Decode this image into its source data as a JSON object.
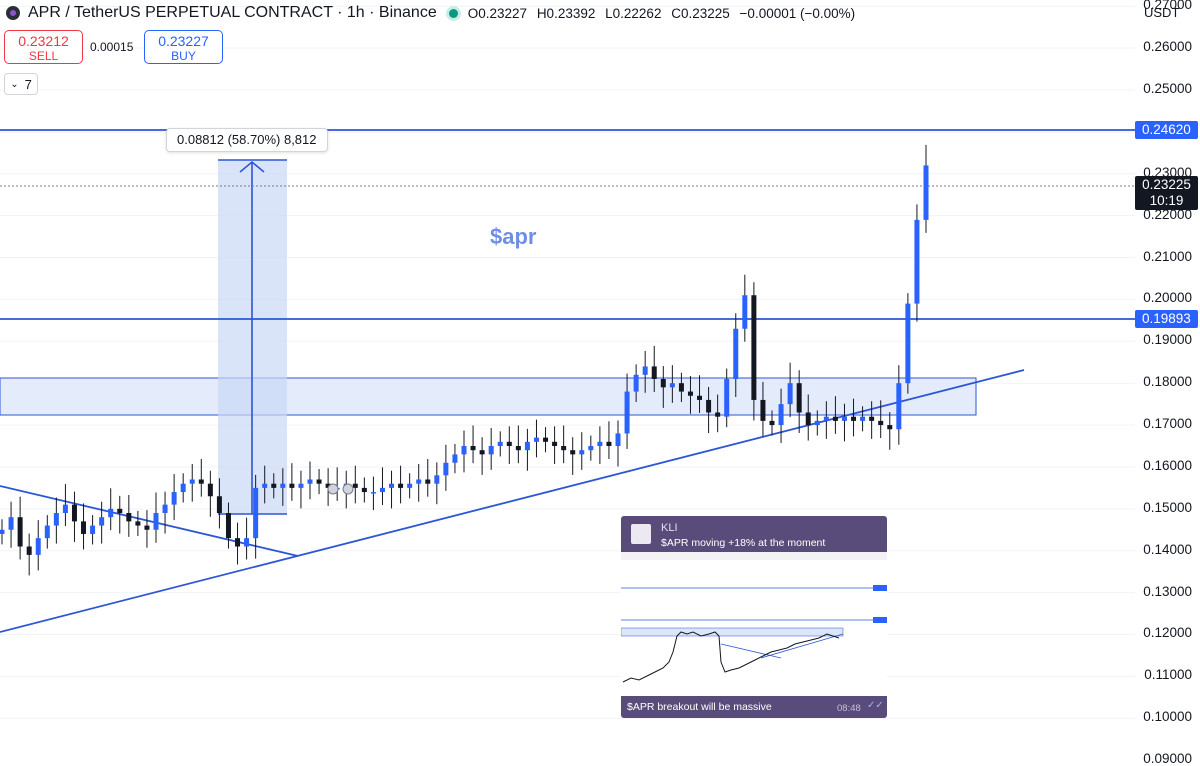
{
  "header": {
    "title": "APR / TetherUS PERPETUAL CONTRACT · 1h · Binance",
    "open": "O0.23227",
    "high": "H0.23392",
    "low": "L0.22262",
    "close": "C0.23225",
    "change": "−0.00001 (−0.00%)"
  },
  "trade": {
    "sell_price": "0.23212",
    "sell_label": "SELL",
    "spread": "0.00015",
    "buy_price": "0.23227",
    "buy_label": "BUY"
  },
  "indicators_toggle": "7",
  "currency": "USDT",
  "price_tags": {
    "upper_level": "0.24620",
    "lower_level": "0.19893",
    "current_price": "0.23225",
    "countdown": "10:19"
  },
  "measure_label": "0.08812 (58.70%) 8,812",
  "annotation": "$apr",
  "message": {
    "author": "KLI",
    "text": "$APR moving +18% at the moment",
    "caption": "$APR breakout will be massive",
    "time": "08:48",
    "check": "✓✓"
  },
  "colors": {
    "up": "#089981",
    "down": "#131722",
    "candle_up_fill": "#2962ff",
    "lines": "#2c56d6",
    "zone": "#dbe6fb",
    "accent": "#2962ff"
  },
  "chart_data": {
    "type": "candlestick",
    "title": "APR / TetherUS PERPETUAL CONTRACT · 1h · Binance",
    "y_axis_ticks": [
      "0.27000",
      "0.26000",
      "0.25000",
      "0.24000",
      "0.23000",
      "0.22000",
      "0.21000",
      "0.20000",
      "0.19000",
      "0.18000",
      "0.17000",
      "0.16000",
      "0.15000",
      "0.14000",
      "0.13000",
      "0.12000",
      "0.11000",
      "0.10000",
      "0.09000"
    ],
    "ylim": [
      0.0905,
      0.2715
    ],
    "horizontal_levels": [
      0.2462,
      0.19893
    ],
    "current_price": 0.23225,
    "measure": {
      "from": 0.15,
      "to": 0.23812,
      "change": 0.08812,
      "percent": 58.7
    },
    "resistance_zone": [
      0.1748,
      0.1841
    ],
    "candles_note": "approximate hourly closes read from chart",
    "closes": [
      0.145,
      0.148,
      0.141,
      0.139,
      0.143,
      0.146,
      0.149,
      0.151,
      0.147,
      0.144,
      0.146,
      0.148,
      0.15,
      0.149,
      0.147,
      0.146,
      0.145,
      0.149,
      0.151,
      0.154,
      0.156,
      0.157,
      0.156,
      0.153,
      0.149,
      0.143,
      0.141,
      0.143,
      0.155,
      0.156,
      0.155,
      0.156,
      0.155,
      0.156,
      0.157,
      0.156,
      0.155,
      0.155,
      0.156,
      0.155,
      0.154,
      0.154,
      0.155,
      0.156,
      0.155,
      0.156,
      0.157,
      0.156,
      0.158,
      0.161,
      0.163,
      0.165,
      0.164,
      0.163,
      0.165,
      0.166,
      0.165,
      0.164,
      0.166,
      0.167,
      0.166,
      0.165,
      0.164,
      0.163,
      0.164,
      0.165,
      0.166,
      0.165,
      0.168,
      0.178,
      0.182,
      0.184,
      0.181,
      0.179,
      0.18,
      0.178,
      0.177,
      0.176,
      0.173,
      0.172,
      0.181,
      0.193,
      0.201,
      0.176,
      0.171,
      0.17,
      0.175,
      0.18,
      0.173,
      0.17,
      0.171,
      0.172,
      0.171,
      0.172,
      0.171,
      0.172,
      0.171,
      0.17,
      0.169,
      0.18,
      0.199,
      0.219,
      0.232
    ]
  }
}
